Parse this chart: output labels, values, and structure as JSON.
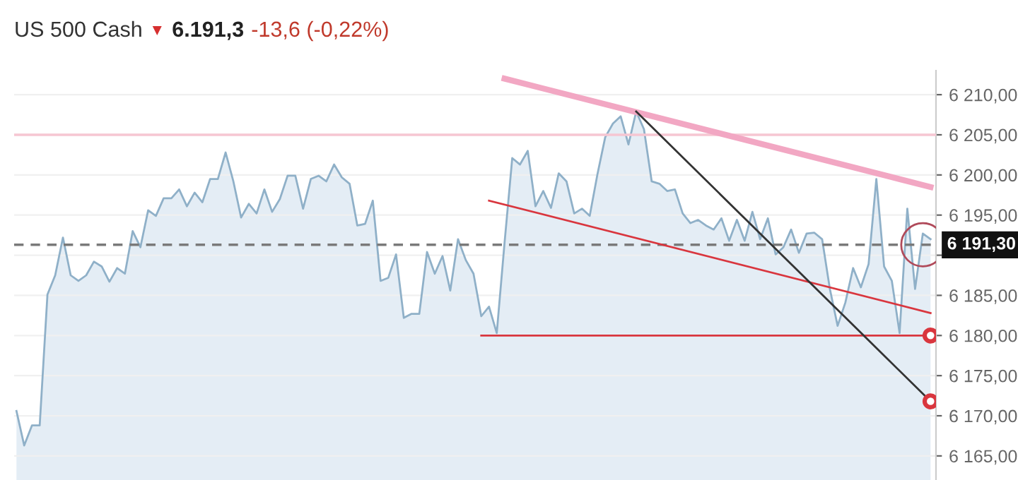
{
  "chart_data": {
    "type": "area",
    "title": "US 500 Cash",
    "annotations": [
      "▼",
      "6.191,3",
      "-13,6 (-0,22%)"
    ],
    "categories": [
      null,
      null,
      null,
      null,
      null,
      null,
      null,
      null,
      null,
      null,
      null,
      null,
      null,
      null,
      null,
      null,
      null,
      null,
      null,
      null,
      null,
      null,
      null,
      null,
      null,
      null,
      null,
      null,
      null,
      null,
      null,
      null,
      null,
      null,
      null,
      null,
      null,
      null,
      null,
      null,
      null,
      null,
      null,
      null,
      null,
      null,
      null,
      null,
      null,
      null,
      null,
      null,
      null,
      null,
      null,
      null,
      null,
      null,
      null,
      null,
      null,
      null,
      null,
      null,
      null,
      null,
      null,
      null,
      null,
      null,
      null,
      null,
      null,
      null,
      null,
      null,
      null,
      null,
      null,
      null,
      null,
      null,
      null,
      null,
      null,
      null,
      null,
      null,
      null,
      null,
      null,
      null,
      null,
      null,
      null,
      null,
      null,
      null,
      null,
      null,
      null,
      null,
      null,
      null,
      null,
      null,
      null,
      null,
      null,
      null,
      null,
      null,
      null,
      null,
      null,
      null,
      null,
      null,
      null
    ],
    "series": [
      {
        "color": "#8fb0c8",
        "values": [
          6170.6,
          6166.3,
          6168.8,
          6168.8,
          6185.1,
          6187.5,
          6192.2,
          6187.5,
          6186.8,
          6187.5,
          6189.2,
          6188.6,
          6186.7,
          6188.4,
          6187.7,
          6193.0,
          6191.0,
          6195.6,
          6194.9,
          6197.1,
          6197.1,
          6198.2,
          6196.1,
          6197.8,
          6196.6,
          6199.5,
          6199.5,
          6202.8,
          6199.2,
          6194.7,
          6196.4,
          6195.2,
          6198.2,
          6195.4,
          6197.0,
          6199.9,
          6199.9,
          6195.8,
          6199.5,
          6199.9,
          6199.2,
          6201.3,
          6199.7,
          6198.9,
          6193.7,
          6193.9,
          6196.8,
          6186.8,
          6187.2,
          6190.1,
          6182.2,
          6182.7,
          6182.7,
          6190.4,
          6187.7,
          6189.9,
          6185.6,
          6192.0,
          6189.4,
          6187.7,
          6182.4,
          6183.6,
          6180.3,
          6191.5,
          6202.1,
          6201.3,
          6203.0,
          6196.1,
          6198.0,
          6195.9,
          6200.2,
          6199.2,
          6195.2,
          6195.8,
          6194.9,
          6200.1,
          6204.7,
          6206.4,
          6207.3,
          6203.8,
          6207.9,
          6205.7,
          6199.2,
          6198.9,
          6198.0,
          6198.2,
          6195.2,
          6194.0,
          6194.4,
          6193.7,
          6193.2,
          6194.6,
          6191.8,
          6194.4,
          6191.8,
          6195.4,
          6192.0,
          6194.6,
          6190.1,
          6191.0,
          6193.2,
          6190.3,
          6192.7,
          6192.8,
          6192.0,
          6185.8,
          6181.2,
          6184.1,
          6188.4,
          6186.0,
          6188.9,
          6199.5,
          6188.6,
          6186.8,
          6180.3,
          6195.8,
          6185.8,
          6192.7,
          6192.0
        ]
      },
      {
        "type": "line",
        "color": "#f2a7c3",
        "values": [
          null,
          null,
          null,
          null,
          null,
          null,
          null,
          null,
          null,
          null,
          null,
          null,
          null,
          null,
          null,
          null,
          null,
          null,
          null,
          null,
          null,
          null,
          null,
          null,
          null,
          null,
          null,
          null,
          null,
          null,
          null,
          null,
          null,
          null,
          null,
          null,
          null,
          null,
          null,
          null,
          null,
          null,
          null,
          null,
          null,
          null,
          null,
          null,
          null,
          null,
          null,
          null,
          null,
          null,
          null,
          null,
          null,
          null,
          null,
          null,
          null,
          null,
          null,
          6212,
          null,
          null,
          null,
          null,
          null,
          null,
          null,
          null,
          null,
          null,
          null,
          null,
          null,
          null,
          null,
          null,
          null,
          null,
          null,
          null,
          null,
          null,
          null,
          null,
          null,
          null,
          null,
          null,
          null,
          null,
          null,
          null,
          null,
          null,
          null,
          null,
          null,
          null,
          null,
          null,
          null,
          null,
          null,
          null,
          null,
          null,
          null,
          null,
          null,
          null,
          null,
          null,
          null,
          null,
          6198.5
        ]
      },
      {
        "type": "line",
        "color": "#d9363e",
        "values": [
          null,
          null,
          null,
          null,
          null,
          null,
          null,
          null,
          null,
          null,
          null,
          null,
          null,
          null,
          null,
          null,
          null,
          null,
          null,
          null,
          null,
          null,
          null,
          null,
          null,
          null,
          null,
          null,
          null,
          null,
          null,
          null,
          null,
          null,
          null,
          null,
          null,
          null,
          null,
          null,
          null,
          null,
          null,
          null,
          null,
          null,
          null,
          null,
          null,
          null,
          null,
          null,
          null,
          null,
          null,
          null,
          null,
          null,
          null,
          null,
          null,
          6196.8,
          null,
          null,
          null,
          null,
          null,
          null,
          null,
          null,
          null,
          null,
          null,
          null,
          null,
          null,
          null,
          null,
          null,
          null,
          null,
          null,
          null,
          null,
          null,
          null,
          null,
          null,
          null,
          null,
          null,
          null,
          null,
          null,
          null,
          null,
          null,
          null,
          null,
          null,
          null,
          null,
          null,
          null,
          null,
          null,
          null,
          null,
          null,
          null,
          null,
          null,
          null,
          null,
          null,
          null,
          null,
          null,
          6182.8
        ]
      },
      {
        "type": "line",
        "color": "#d9363e",
        "values": [
          null,
          null,
          null,
          null,
          null,
          null,
          null,
          null,
          null,
          null,
          null,
          null,
          null,
          null,
          null,
          null,
          null,
          null,
          null,
          null,
          null,
          null,
          null,
          null,
          null,
          null,
          null,
          null,
          null,
          null,
          null,
          null,
          null,
          null,
          null,
          null,
          null,
          null,
          null,
          null,
          null,
          null,
          null,
          null,
          null,
          null,
          null,
          null,
          null,
          null,
          null,
          null,
          null,
          null,
          null,
          null,
          null,
          null,
          null,
          null,
          6180,
          null,
          null,
          null,
          null,
          null,
          null,
          null,
          null,
          null,
          null,
          null,
          null,
          null,
          null,
          null,
          null,
          null,
          null,
          null,
          null,
          null,
          null,
          null,
          null,
          null,
          null,
          null,
          null,
          null,
          null,
          null,
          null,
          null,
          null,
          null,
          null,
          null,
          null,
          null,
          null,
          null,
          null,
          null,
          null,
          null,
          null,
          null,
          null,
          null,
          null,
          null,
          null,
          null,
          null,
          null,
          null,
          null,
          6180
        ],
        "marker": "circle"
      },
      {
        "type": "line",
        "color": "#333333",
        "values": [
          null,
          null,
          null,
          null,
          null,
          null,
          null,
          null,
          null,
          null,
          null,
          null,
          null,
          null,
          null,
          null,
          null,
          null,
          null,
          null,
          null,
          null,
          null,
          null,
          null,
          null,
          null,
          null,
          null,
          null,
          null,
          null,
          null,
          null,
          null,
          null,
          null,
          null,
          null,
          null,
          null,
          null,
          null,
          null,
          null,
          null,
          null,
          null,
          null,
          null,
          null,
          null,
          null,
          null,
          null,
          null,
          null,
          null,
          null,
          null,
          null,
          null,
          null,
          null,
          null,
          null,
          null,
          null,
          null,
          null,
          null,
          null,
          null,
          null,
          null,
          null,
          null,
          null,
          null,
          null,
          6207.9,
          null,
          null,
          null,
          null,
          null,
          null,
          null,
          null,
          null,
          null,
          null,
          null,
          null,
          null,
          null,
          null,
          null,
          null,
          null,
          null,
          null,
          null,
          null,
          null,
          null,
          null,
          null,
          null,
          null,
          null,
          null,
          null,
          null,
          null,
          null,
          null,
          null,
          6171.8
        ],
        "marker": "circle"
      }
    ],
    "ylim": [
      6162,
      6213
    ],
    "yticks": [
      {
        "value": 6165,
        "label": "6 165,00"
      },
      {
        "value": 6170,
        "label": "6 170,00"
      },
      {
        "value": 6175,
        "label": "6 175,00"
      },
      {
        "value": 6180,
        "label": "6 180,00"
      },
      {
        "value": 6185,
        "label": "6 185,00"
      },
      {
        "value": 6190,
        "label": null
      },
      {
        "value": 6195,
        "label": "6 195,00"
      },
      {
        "value": 6200,
        "label": "6 200,00"
      },
      {
        "value": 6205,
        "label": "6 205,00"
      },
      {
        "value": 6210,
        "label": "6 210,00"
      }
    ],
    "tick_labels": "y",
    "grid": "y",
    "ref_lines": [
      {
        "axis": "y",
        "value": 6205,
        "color": "#f6c6d2"
      },
      {
        "axis": "y",
        "value": 6191.3,
        "label": "6 191,30",
        "color": "#7a7a7a",
        "line_style": "dashed"
      }
    ]
  }
}
